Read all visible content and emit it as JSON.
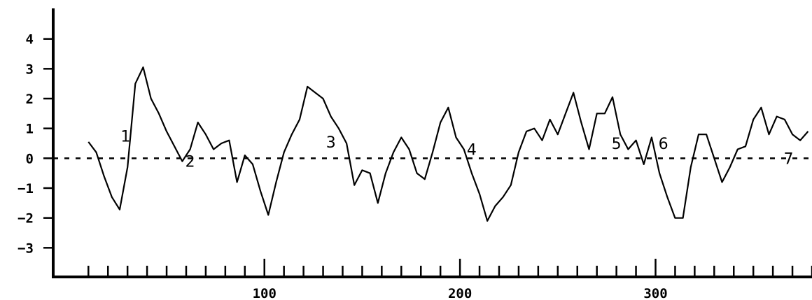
{
  "chart_data": {
    "type": "line",
    "title": "",
    "xlabel": "",
    "ylabel": "",
    "xlim": [
      -8,
      380
    ],
    "ylim": [
      -4,
      5
    ],
    "yticks": [
      -3,
      -2,
      -1,
      0,
      1,
      2,
      3,
      4
    ],
    "yticklabels": [
      "−3",
      "−2",
      "−1",
      "0",
      "1",
      "2",
      "3",
      "4"
    ],
    "xticks_major": [
      100,
      200,
      300
    ],
    "xticklabels": [
      "100",
      "200",
      "300"
    ],
    "xticks_minor_step": 10,
    "grid": false,
    "reference_line": {
      "y": 0,
      "style": "dashed"
    },
    "line_color": "#000000",
    "series": [
      {
        "x": [
          10,
          14,
          18,
          22,
          26,
          30,
          34,
          38,
          42,
          46,
          50,
          54,
          58,
          62,
          66,
          70,
          74,
          78,
          82,
          86,
          90,
          94,
          98,
          102,
          106,
          110,
          114,
          118,
          122,
          126,
          130,
          134,
          138,
          142,
          146,
          150,
          154,
          158,
          162,
          166,
          170,
          174,
          178,
          182,
          186,
          190,
          194,
          198,
          202,
          206,
          210,
          214,
          218,
          222,
          226,
          230,
          234,
          238,
          242,
          246,
          250,
          254,
          258,
          262,
          266,
          270,
          274,
          278,
          282,
          286,
          290,
          294,
          298,
          302,
          306,
          310,
          314,
          318,
          322,
          326,
          330,
          334,
          338,
          342,
          346,
          350,
          354,
          358,
          362,
          366,
          370,
          374,
          378
        ],
        "y": [
          0.55,
          0.2,
          -0.6,
          -1.3,
          -1.72,
          -0.3,
          2.5,
          3.05,
          2.0,
          1.5,
          0.9,
          0.4,
          -0.1,
          0.3,
          1.2,
          0.8,
          0.3,
          0.5,
          0.6,
          -0.8,
          0.1,
          -0.2,
          -1.1,
          -1.9,
          -0.8,
          0.2,
          0.8,
          1.3,
          2.4,
          2.2,
          2.0,
          1.4,
          1.0,
          0.5,
          -0.9,
          -0.4,
          -0.5,
          -1.5,
          -0.5,
          0.2,
          0.7,
          0.3,
          -0.5,
          -0.7,
          0.2,
          1.2,
          1.7,
          0.7,
          0.3,
          -0.5,
          -1.2,
          -2.1,
          -1.6,
          -1.3,
          -0.9,
          0.2,
          0.9,
          1.0,
          0.6,
          1.3,
          0.8,
          1.5,
          2.2,
          1.2,
          0.3,
          1.5,
          1.5,
          2.05,
          0.8,
          0.3,
          0.6,
          -0.2,
          0.7,
          -0.5,
          -1.3,
          -2.0,
          -2.0,
          -0.3,
          0.8,
          0.8,
          0.0,
          -0.8,
          -0.3,
          0.3,
          0.4,
          1.3,
          1.7,
          0.8,
          1.4,
          1.3,
          0.8,
          0.6,
          0.9
        ]
      }
    ],
    "annotations": [
      {
        "text": "1",
        "x": 29,
        "y": 0.75
      },
      {
        "text": "2",
        "x": 62,
        "y": -0.1
      },
      {
        "text": "3",
        "x": 134,
        "y": 0.55
      },
      {
        "text": "4",
        "x": 206,
        "y": 0.3
      },
      {
        "text": "5",
        "x": 280,
        "y": 0.5
      },
      {
        "text": "6",
        "x": 304,
        "y": 0.5
      },
      {
        "text": "7",
        "x": 368,
        "y": 0.0
      }
    ]
  }
}
